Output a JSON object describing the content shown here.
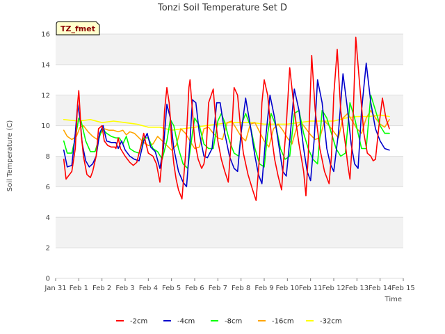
{
  "chart_data": {
    "type": "line",
    "title": "Tonzi Soil Temperature Set D",
    "xlabel": "Time",
    "ylabel": "Soil Temperature (C)",
    "badge": "TZ_fmet",
    "ylim": [
      0,
      16
    ],
    "yticks": [
      0,
      2,
      4,
      6,
      8,
      10,
      12,
      14,
      16
    ],
    "xlim": [
      0,
      15
    ],
    "xtick_labels": [
      "Jan 31",
      "Feb 1",
      "Feb 2",
      "Feb 3",
      "Feb 4",
      "Feb 5",
      "Feb 6",
      "Feb 7",
      "Feb 8",
      "Feb 9",
      "Feb 10",
      "Feb 11",
      "Feb 12",
      "Feb 13",
      "Feb 14",
      "Feb 15"
    ],
    "grid": "horizontal-bands",
    "legend_position": "bottom",
    "series": [
      {
        "name": "-2cm",
        "color": "#ff0000",
        "x": [
          0.35,
          0.45,
          0.55,
          0.7,
          0.85,
          0.95,
          1.0,
          1.05,
          1.1,
          1.2,
          1.35,
          1.5,
          1.6,
          1.75,
          1.85,
          2.0,
          2.1,
          2.25,
          2.4,
          2.55,
          2.6,
          2.7,
          2.8,
          3.0,
          3.2,
          3.35,
          3.5,
          3.7,
          3.8,
          3.9,
          4.0,
          4.1,
          4.2,
          4.35,
          4.5,
          4.6,
          4.7,
          4.8,
          4.9,
          4.95,
          5.0,
          5.1,
          5.2,
          5.3,
          5.45,
          5.6,
          5.75,
          5.8,
          5.9,
          6.0,
          6.15,
          6.3,
          6.4,
          6.5,
          6.6,
          6.8,
          6.9,
          7.0,
          7.15,
          7.3,
          7.45,
          7.6,
          7.7,
          7.85,
          8.0,
          8.1,
          8.3,
          8.5,
          8.65,
          8.8,
          8.9,
          9.0,
          9.15,
          9.3,
          9.45,
          9.6,
          9.75,
          9.85,
          9.95,
          10.1,
          10.3,
          10.5,
          10.7,
          10.8,
          10.9,
          10.95,
          11.05,
          11.2,
          11.4,
          11.6,
          11.8,
          11.9,
          12.0,
          12.15,
          12.3,
          12.5,
          12.6,
          12.7,
          12.8,
          12.95,
          13.1,
          13.3,
          13.45,
          13.6,
          13.7,
          13.8,
          13.95,
          14.1,
          14.25,
          14.4
        ],
        "y": [
          7.8,
          6.5,
          6.7,
          7.0,
          8.5,
          11.5,
          12.3,
          11.0,
          9.5,
          8.0,
          6.8,
          6.6,
          7.0,
          8.0,
          9.8,
          10.0,
          9.0,
          8.7,
          8.6,
          8.6,
          8.5,
          9.2,
          8.5,
          8.0,
          7.6,
          7.4,
          7.6,
          8.8,
          9.5,
          8.8,
          8.2,
          8.1,
          8.0,
          7.5,
          6.3,
          8.0,
          11.0,
          12.5,
          11.5,
          10.5,
          9.0,
          7.5,
          6.5,
          5.8,
          5.2,
          8.0,
          12.5,
          13.0,
          11.0,
          9.0,
          7.8,
          7.2,
          7.5,
          8.5,
          11.5,
          12.4,
          10.5,
          9.0,
          7.8,
          7.0,
          6.3,
          9.5,
          12.5,
          12.0,
          9.5,
          8.2,
          6.8,
          5.8,
          5.1,
          8.0,
          11.5,
          13.0,
          12.0,
          9.5,
          7.8,
          6.7,
          5.8,
          8.0,
          10.0,
          13.8,
          11.0,
          8.8,
          7.0,
          5.4,
          8.0,
          10.5,
          14.6,
          11.0,
          8.5,
          7.0,
          6.2,
          8.0,
          12.0,
          15.0,
          11.0,
          8.8,
          7.5,
          6.5,
          9.0,
          15.8,
          13.0,
          9.5,
          8.2,
          8.0,
          7.7,
          7.8,
          10.0,
          11.8,
          10.5,
          9.8
        ]
      },
      {
        "name": "-4cm",
        "color": "#0000cc",
        "x": [
          0.35,
          0.5,
          0.7,
          0.85,
          0.95,
          1.05,
          1.15,
          1.3,
          1.45,
          1.6,
          1.75,
          1.9,
          2.05,
          2.2,
          2.4,
          2.6,
          2.7,
          2.85,
          3.0,
          3.2,
          3.4,
          3.6,
          3.8,
          3.95,
          4.1,
          4.3,
          4.5,
          4.65,
          4.8,
          4.95,
          5.1,
          5.3,
          5.5,
          5.65,
          5.8,
          5.9,
          6.05,
          6.2,
          6.4,
          6.55,
          6.75,
          6.95,
          7.1,
          7.3,
          7.5,
          7.7,
          7.85,
          8.0,
          8.2,
          8.4,
          8.6,
          8.75,
          8.9,
          9.05,
          9.25,
          9.45,
          9.65,
          9.8,
          9.95,
          10.1,
          10.3,
          10.5,
          10.7,
          10.85,
          11.0,
          11.15,
          11.3,
          11.5,
          11.7,
          11.85,
          12.0,
          12.2,
          12.4,
          12.6,
          12.75,
          12.9,
          13.05,
          13.2,
          13.4,
          13.6,
          13.8,
          14.0,
          14.2,
          14.4
        ],
        "y": [
          8.4,
          7.3,
          7.4,
          9.5,
          11.4,
          10.5,
          8.8,
          7.7,
          7.3,
          7.5,
          8.0,
          9.5,
          10.0,
          9.0,
          8.9,
          8.9,
          8.5,
          9.0,
          8.4,
          8.0,
          7.8,
          7.7,
          9.0,
          9.5,
          8.6,
          8.3,
          7.2,
          8.5,
          11.4,
          10.5,
          8.5,
          7.0,
          6.3,
          6.0,
          9.0,
          11.7,
          11.5,
          9.5,
          8.0,
          7.9,
          8.5,
          11.5,
          11.5,
          9.5,
          8.0,
          7.2,
          7.0,
          9.5,
          11.8,
          10.0,
          8.0,
          6.8,
          6.2,
          9.0,
          12.0,
          10.5,
          8.5,
          7.0,
          6.7,
          9.0,
          12.4,
          11.0,
          8.5,
          7.0,
          6.4,
          9.0,
          13.0,
          11.5,
          8.5,
          7.5,
          7.0,
          9.5,
          13.4,
          11.0,
          8.8,
          7.5,
          7.2,
          11.0,
          14.1,
          11.5,
          9.8,
          9.0,
          8.5,
          8.4
        ]
      },
      {
        "name": "-8cm",
        "color": "#00ff00",
        "x": [
          0.35,
          0.5,
          0.7,
          0.85,
          1.0,
          1.1,
          1.3,
          1.5,
          1.7,
          1.9,
          2.0,
          2.2,
          2.4,
          2.6,
          2.75,
          2.9,
          3.05,
          3.2,
          3.4,
          3.6,
          3.8,
          4.0,
          4.2,
          4.4,
          4.6,
          4.8,
          4.95,
          5.1,
          5.3,
          5.5,
          5.7,
          5.9,
          6.0,
          6.2,
          6.4,
          6.6,
          6.8,
          7.0,
          7.15,
          7.3,
          7.5,
          7.7,
          7.9,
          8.05,
          8.2,
          8.4,
          8.6,
          8.8,
          9.0,
          9.15,
          9.3,
          9.5,
          9.7,
          9.9,
          10.1,
          10.3,
          10.5,
          10.7,
          10.9,
          11.1,
          11.3,
          11.5,
          11.7,
          11.9,
          12.1,
          12.3,
          12.5,
          12.7,
          12.9,
          13.05,
          13.2,
          13.4,
          13.6,
          13.8,
          14.0,
          14.2,
          14.4
        ],
        "y": [
          9.0,
          8.2,
          8.2,
          9.2,
          10.5,
          10.3,
          9.0,
          8.3,
          8.3,
          9.3,
          9.8,
          9.5,
          9.3,
          9.2,
          9.2,
          8.8,
          9.3,
          8.5,
          8.3,
          8.2,
          9.2,
          9.2,
          8.5,
          8.3,
          7.8,
          9.0,
          10.4,
          10.0,
          8.5,
          7.5,
          7.2,
          9.5,
          10.5,
          10.0,
          8.8,
          8.5,
          8.5,
          10.3,
          10.8,
          10.2,
          9.0,
          8.2,
          8.0,
          10.2,
          10.8,
          10.0,
          8.5,
          7.5,
          7.3,
          9.5,
          10.8,
          10.0,
          8.5,
          7.8,
          8.0,
          10.8,
          11.0,
          9.5,
          8.5,
          7.8,
          7.5,
          11.0,
          10.5,
          9.5,
          8.5,
          8.0,
          8.2,
          11.5,
          10.5,
          9.5,
          8.5,
          8.5,
          12.0,
          11.0,
          10.0,
          9.5,
          9.5
        ]
      },
      {
        "name": "-16cm",
        "color": "#ffa500",
        "x": [
          0.35,
          0.5,
          0.7,
          0.9,
          1.05,
          1.2,
          1.4,
          1.6,
          1.8,
          1.95,
          2.1,
          2.3,
          2.5,
          2.7,
          2.9,
          3.05,
          3.2,
          3.4,
          3.6,
          3.8,
          4.0,
          4.2,
          4.4,
          4.6,
          4.8,
          5.0,
          5.2,
          5.4,
          5.6,
          5.8,
          6.0,
          6.2,
          6.4,
          6.6,
          6.8,
          7.0,
          7.2,
          7.4,
          7.6,
          7.8,
          8.0,
          8.2,
          8.4,
          8.6,
          8.8,
          9.0,
          9.2,
          9.4,
          9.6,
          9.8,
          10.0,
          10.2,
          10.4,
          10.6,
          10.8,
          11.0,
          11.2,
          11.4,
          11.6,
          11.8,
          12.0,
          12.2,
          12.4,
          12.6,
          12.8,
          13.0,
          13.2,
          13.4,
          13.6,
          13.8,
          14.0,
          14.2,
          14.4
        ],
        "y": [
          9.7,
          9.3,
          9.1,
          9.3,
          9.9,
          10.0,
          9.6,
          9.3,
          9.1,
          9.5,
          9.8,
          9.7,
          9.7,
          9.6,
          9.7,
          9.4,
          9.6,
          9.5,
          9.2,
          8.9,
          8.7,
          8.8,
          9.3,
          9.0,
          8.7,
          8.4,
          8.7,
          9.8,
          9.5,
          9.0,
          8.5,
          8.6,
          9.8,
          9.9,
          9.5,
          9.2,
          9.1,
          10.2,
          10.3,
          9.8,
          9.3,
          9.0,
          10.1,
          10.2,
          9.6,
          9.0,
          8.6,
          9.8,
          10.1,
          9.7,
          9.2,
          8.8,
          9.9,
          10.2,
          9.8,
          9.4,
          9.1,
          9.2,
          10.3,
          10.0,
          9.6,
          9.2,
          10.5,
          10.8,
          10.3,
          9.8,
          9.5,
          10.5,
          11.0,
          10.5,
          10.1,
          9.9,
          10.4
        ]
      },
      {
        "name": "-32cm",
        "color": "#ffff00",
        "x": [
          0.35,
          1.0,
          1.5,
          2.0,
          2.5,
          3.0,
          3.5,
          4.0,
          4.5,
          5.0,
          5.5,
          6.0,
          6.5,
          7.0,
          7.5,
          8.0,
          8.5,
          9.0,
          9.5,
          10.0,
          10.5,
          11.0,
          11.5,
          12.0,
          12.5,
          13.0,
          13.5,
          14.0,
          14.4
        ],
        "y": [
          10.4,
          10.3,
          10.4,
          10.2,
          10.3,
          10.2,
          10.1,
          9.9,
          9.9,
          9.7,
          9.8,
          9.9,
          10.0,
          10.1,
          10.2,
          10.2,
          10.2,
          10.1,
          10.1,
          10.1,
          10.2,
          10.3,
          10.3,
          10.3,
          10.5,
          10.6,
          10.6,
          10.7,
          10.6
        ]
      }
    ]
  }
}
